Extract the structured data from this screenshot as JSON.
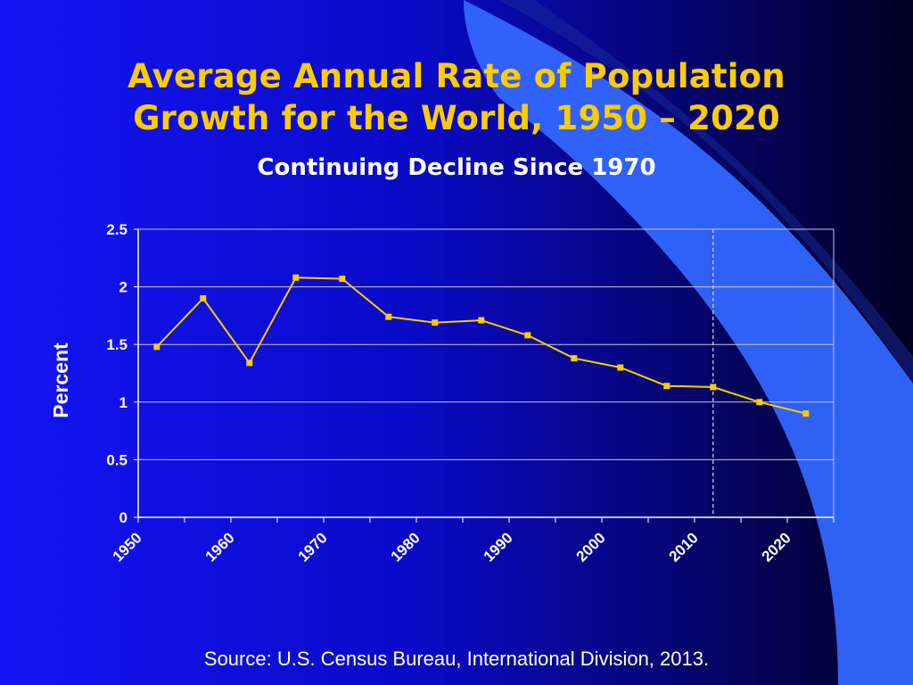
{
  "slide": {
    "title_line1": "Average Annual Rate of Population",
    "title_line2": "Growth for the World, 1950 – 2020",
    "subtitle": "Continuing Decline Since 1970",
    "source": "Source: U.S. Census Bureau, International Division, 2013.",
    "colors": {
      "background_main": "#1010F0",
      "background_dark": "#000030",
      "swoosh": "#3366FF",
      "title": "#FFCC00",
      "line": "#FFCC00",
      "text": "#FFFFFF"
    }
  },
  "chart_data": {
    "type": "line",
    "title": "",
    "xlabel": "",
    "ylabel": "Percent",
    "xlim": [
      1950,
      2025
    ],
    "ylim": [
      0,
      2.5
    ],
    "yticks": [
      0,
      0.5,
      1,
      1.5,
      2,
      2.5
    ],
    "ytick_labels": [
      "0",
      "0.5",
      "1",
      "1.5",
      "2",
      "2.5"
    ],
    "xticks": [
      1950,
      1960,
      1970,
      1980,
      1990,
      2000,
      2010,
      2020
    ],
    "xtick_labels": [
      "1950",
      "1960",
      "1970",
      "1980",
      "1990",
      "2000",
      "2010",
      "2020"
    ],
    "grid": "horizontal",
    "vertical_marker_x": 2012,
    "series": [
      {
        "color": "#FFCC00",
        "x": [
          1952,
          1957,
          1962,
          1967,
          1972,
          1977,
          1982,
          1987,
          1992,
          1997,
          2002,
          2007,
          2012,
          2017,
          2022
        ],
        "y": [
          1.48,
          1.9,
          1.34,
          2.08,
          2.07,
          1.74,
          1.69,
          1.71,
          1.58,
          1.38,
          1.3,
          1.14,
          1.13,
          1.0,
          0.9
        ]
      }
    ]
  }
}
